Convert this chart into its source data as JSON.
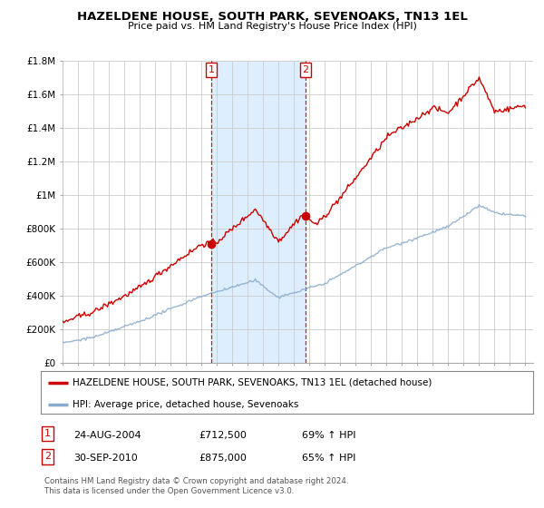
{
  "title": "HAZELDENE HOUSE, SOUTH PARK, SEVENOAKS, TN13 1EL",
  "subtitle": "Price paid vs. HM Land Registry's House Price Index (HPI)",
  "ylabel_ticks": [
    "£0",
    "£200K",
    "£400K",
    "£600K",
    "£800K",
    "£1M",
    "£1.2M",
    "£1.4M",
    "£1.6M",
    "£1.8M"
  ],
  "ytick_values": [
    0,
    200000,
    400000,
    600000,
    800000,
    1000000,
    1200000,
    1400000,
    1600000,
    1800000
  ],
  "ylim": [
    0,
    1800000
  ],
  "sale1_year": 2004.65,
  "sale2_year": 2010.75,
  "sale1_label": "1",
  "sale2_label": "2",
  "sale1_price": 712500,
  "sale2_price": 875000,
  "legend_line1": "HAZELDENE HOUSE, SOUTH PARK, SEVENOAKS, TN13 1EL (detached house)",
  "legend_line2": "HPI: Average price, detached house, Sevenoaks",
  "table_row1_num": "1",
  "table_row1_date": "24-AUG-2004",
  "table_row1_price": "£712,500",
  "table_row1_hpi": "69% ↑ HPI",
  "table_row2_num": "2",
  "table_row2_date": "30-SEP-2010",
  "table_row2_price": "£875,000",
  "table_row2_hpi": "65% ↑ HPI",
  "footer": "Contains HM Land Registry data © Crown copyright and database right 2024.\nThis data is licensed under the Open Government Licence v3.0.",
  "red_color": "#cc0000",
  "blue_color": "#88aacc",
  "vline_color": "#cc0000",
  "grid_color": "#cccccc",
  "highlight_color": "#ddeeff",
  "bg_plot": "#ffffff",
  "bg_fig": "#ffffff",
  "xlim_start": 1995,
  "xlim_end": 2025.5
}
